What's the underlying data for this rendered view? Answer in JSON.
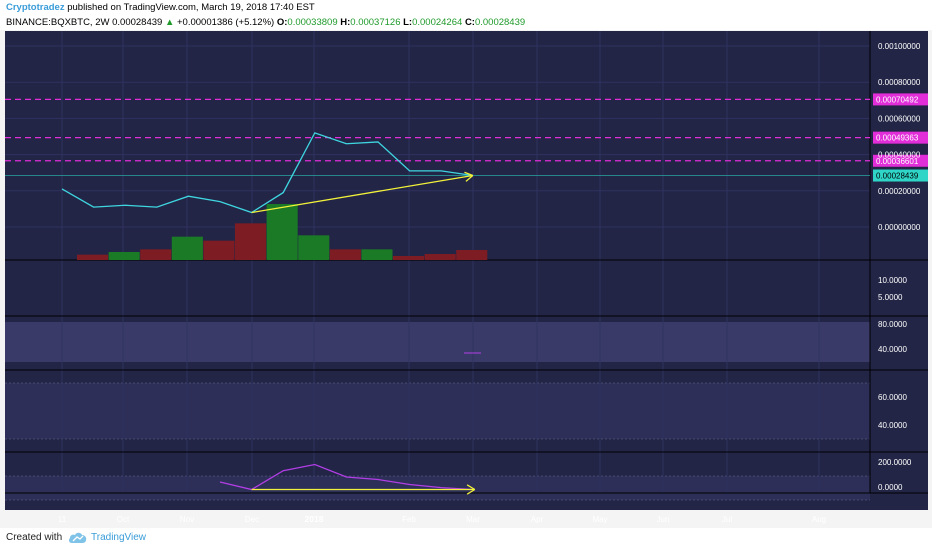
{
  "header": {
    "author": "Cryptotradez",
    "published": "published on TradingView.com, March 19, 2018 17:40 EST",
    "symbol": "BINANCE:BQXBTC, 2W",
    "last": "0.00028439",
    "change": "+0.00001386 (+5.12%)",
    "o_label": "O:",
    "o": "0.00033809",
    "h_label": "H:",
    "h": "0.00037126",
    "l_label": "L:",
    "l": "0.00024264",
    "c_label": "C:",
    "c": "0.00028439"
  },
  "footer": {
    "created": "Created with",
    "brand": "TradingView"
  },
  "colors": {
    "background": "#222546",
    "price_line": "#3fd6e0",
    "trend_line": "#f2f23a",
    "resistance": "#e12ed8",
    "bull": "#1b7a26",
    "bear": "#7d1c22",
    "osc": "#b23ee6"
  },
  "chart_data": {
    "type": "line",
    "x_axis_labels": [
      "11",
      "Oct",
      "Nov",
      "Dec",
      "2018",
      "Feb",
      "Mar",
      "Apr",
      "May",
      "Jun",
      "Jul",
      "Aug"
    ],
    "price": {
      "y_ticks": [
        "0.00100000",
        "0.00080000",
        "0.00060000",
        "0.00040000",
        "0.00020000",
        "0.00000000"
      ],
      "tick_values": [
        0.001,
        0.0008,
        0.0006,
        0.0004,
        0.0002,
        0
      ],
      "close_series": [
        0.00021,
        0.00011,
        0.00012,
        0.00011,
        0.00017,
        0.00014,
        8e-05,
        0.00019,
        0.00052,
        0.00046,
        0.00047,
        0.00031,
        0.00031,
        0.00028439
      ],
      "horizontal_levels": [
        {
          "value": 0.00070492,
          "label": "0.00070492"
        },
        {
          "value": 0.00049363,
          "label": "0.00049363"
        },
        {
          "value": 0.00036601,
          "label": "0.00036601"
        }
      ],
      "last_price_label": "0.00028439",
      "trendline": {
        "from_index": 6,
        "from_value": 8e-05,
        "to_index": 13,
        "to_value": 0.00028439
      }
    },
    "volume": {
      "values": [
        0.8,
        1.2,
        1.6,
        3.5,
        2.9,
        5.5,
        8.4,
        3.7,
        1.6,
        1.6,
        0.6,
        0.9,
        1.5
      ],
      "direction": [
        "down",
        "up",
        "down",
        "up",
        "down",
        "down",
        "up",
        "up",
        "down",
        "up",
        "down",
        "down",
        "down"
      ]
    },
    "pane2": {
      "y_ticks": [
        "10.0000",
        "5.0000"
      ]
    },
    "pane3": {
      "y_ticks": [
        "80.0000",
        "40.0000"
      ]
    },
    "pane4": {
      "y_ticks": [
        "60.0000",
        "40.0000"
      ]
    },
    "pane5": {
      "y_ticks": [
        "200.0000",
        "0.0000"
      ],
      "tick_values": [
        200,
        0
      ],
      "series": [
        40,
        -20,
        130,
        180,
        80,
        60,
        20,
        -5,
        -20
      ],
      "start_index": 5,
      "trendline": {
        "from_value": -20,
        "to_value": -20
      }
    }
  }
}
